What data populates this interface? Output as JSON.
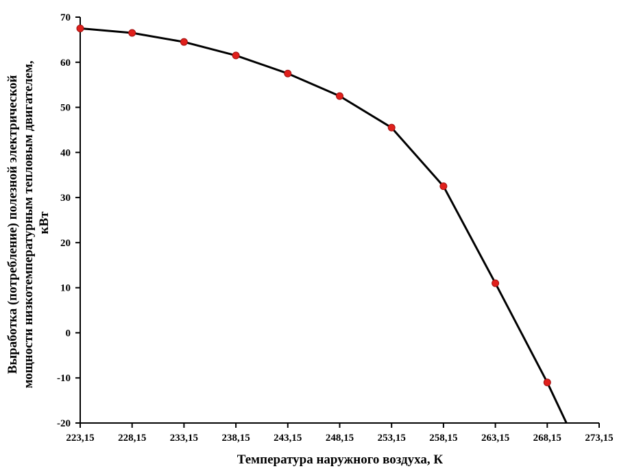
{
  "chart_data": {
    "type": "line",
    "title": "",
    "xlabel": "Температура наружного воздуха, К",
    "ylabel_lines": [
      "Выработка (потребление) полезной электрической",
      "мощности низкотемпературным тепловым двигателем,",
      "кВт"
    ],
    "xlim": [
      223.15,
      273.15
    ],
    "ylim": [
      -20,
      70
    ],
    "x_ticks": [
      223.15,
      228.15,
      233.15,
      238.15,
      243.15,
      248.15,
      253.15,
      258.15,
      263.15,
      268.15,
      273.15
    ],
    "x_tick_labels": [
      "223,15",
      "228,15",
      "233,15",
      "238,15",
      "243,15",
      "248,15",
      "253,15",
      "258,15",
      "263,15",
      "268,15",
      "273,15"
    ],
    "y_ticks": [
      -20,
      -10,
      0,
      10,
      20,
      30,
      40,
      50,
      60,
      70
    ],
    "y_tick_labels": [
      "-20",
      "-10",
      "0",
      "10",
      "20",
      "30",
      "40",
      "50",
      "60",
      "70"
    ],
    "grid": false,
    "legend": "none",
    "series": [
      {
        "x": [
          223.15,
          228.15,
          233.15,
          238.15,
          243.15,
          248.15,
          253.15,
          258.15,
          263.15,
          268.15
        ],
        "y": [
          67.5,
          66.5,
          64.5,
          61.5,
          57.5,
          52.5,
          45.5,
          32.5,
          11,
          -11
        ],
        "line_extends_to": {
          "x": 270,
          "y": -20
        },
        "line_color": "#000000",
        "marker_color": "#e0201c",
        "marker_edge_color": "#a01010"
      }
    ]
  }
}
